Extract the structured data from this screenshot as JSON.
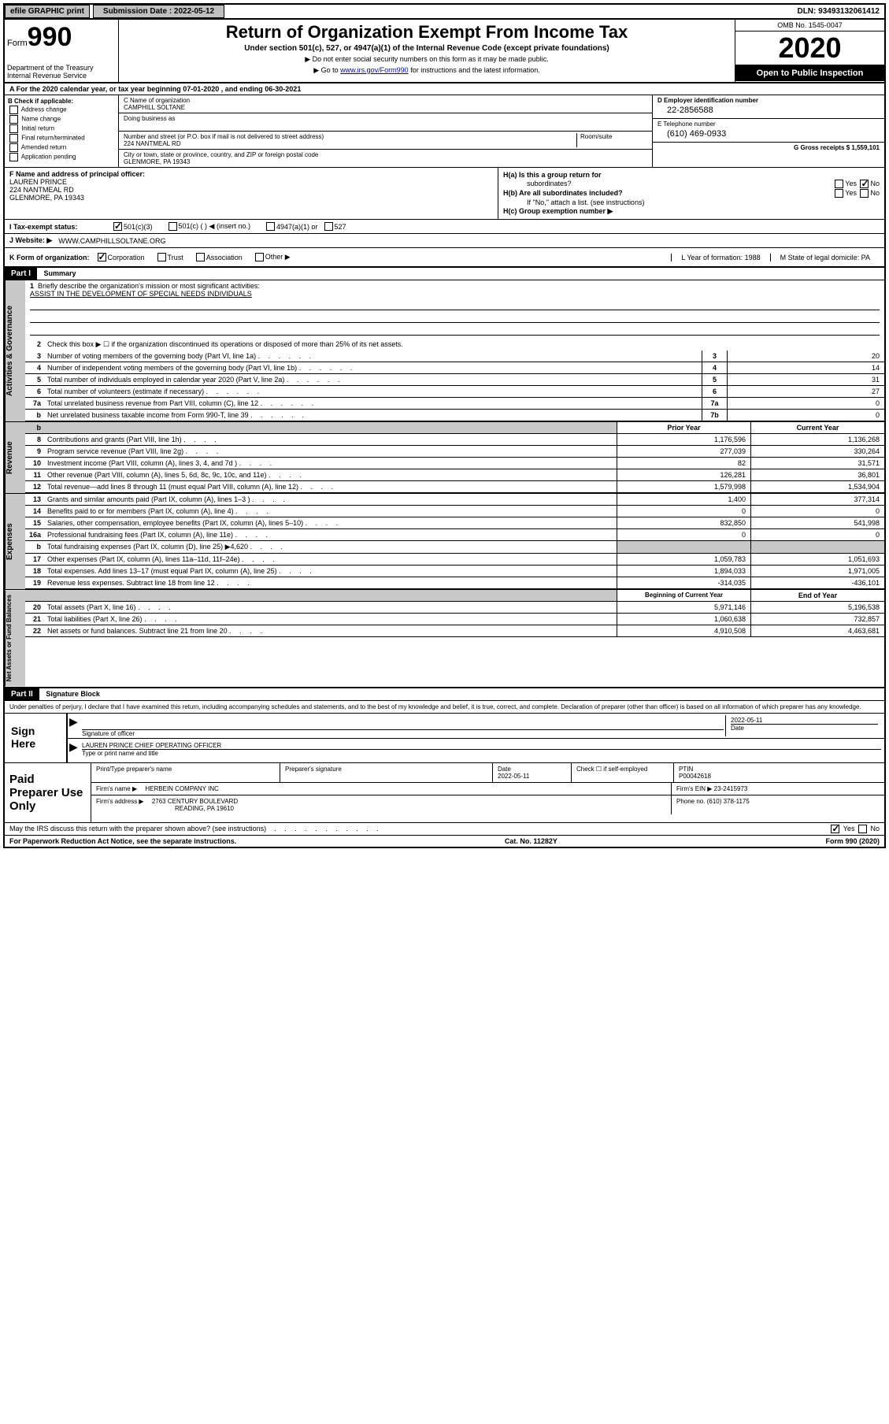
{
  "header": {
    "efile": "efile GRAPHIC print",
    "submission": "Submission Date : 2022-05-12",
    "dln": "DLN: 93493132061412"
  },
  "form": {
    "prefix": "Form",
    "number": "990",
    "dept": "Department of the Treasury Internal Revenue Service",
    "title": "Return of Organization Exempt From Income Tax",
    "subtitle": "Under section 501(c), 527, or 4947(a)(1) of the Internal Revenue Code (except private foundations)",
    "instr1": "▶ Do not enter social security numbers on this form as it may be made public.",
    "instr2_pre": "▶ Go to ",
    "instr2_link": "www.irs.gov/Form990",
    "instr2_post": " for instructions and the latest information.",
    "omb": "OMB No. 1545-0047",
    "year": "2020",
    "inspection": "Open to Public Inspection"
  },
  "rowA": "A For the 2020 calendar year, or tax year beginning 07-01-2020    , and ending 06-30-2021",
  "colB": {
    "label": "B Check if applicable:",
    "items": [
      "Address change",
      "Name change",
      "Initial return",
      "Final return/terminated",
      "Amended return",
      "Application pending"
    ]
  },
  "colC": {
    "name_label": "C Name of organization",
    "name": "CAMPHILL SOLTANE",
    "dba_label": "Doing business as",
    "addr_label": "Number and street (or P.O. box if mail is not delivered to street address)",
    "room_label": "Room/suite",
    "addr": "224 NANTMEAL RD",
    "city_label": "City or town, state or province, country, and ZIP or foreign postal code",
    "city": "GLENMORE, PA  19343"
  },
  "colD": {
    "label": "D Employer identification number",
    "val": "22-2856588"
  },
  "colE": {
    "label": "E Telephone number",
    "val": "(610) 469-0933"
  },
  "colG": {
    "label": "G Gross receipts $ 1,559,101"
  },
  "colF": {
    "label": "F Name and address of principal officer:",
    "name": "LAUREN PRINCE",
    "addr": "224 NANTMEAL RD",
    "city": "GLENMORE, PA  19343"
  },
  "colH": {
    "a": "H(a)  Is this a group return for",
    "a2": "subordinates?",
    "b": "H(b)  Are all subordinates included?",
    "note": "If \"No,\" attach a list. (see instructions)",
    "c": "H(c)  Group exemption number ▶"
  },
  "rowI": {
    "label": "I  Tax-exempt status:",
    "opts": [
      "501(c)(3)",
      "501(c) (   ) ◀ (insert no.)",
      "4947(a)(1) or",
      "527"
    ]
  },
  "rowJ": {
    "label": "J  Website: ▶",
    "val": "WWW.CAMPHILLSOLTANE.ORG"
  },
  "rowK": {
    "label": "K Form of organization:",
    "opts": [
      "Corporation",
      "Trust",
      "Association",
      "Other ▶"
    ],
    "l_label": "L Year of formation: 1988",
    "m_label": "M State of legal domicile: PA"
  },
  "part1": {
    "header": "Part I",
    "title": "Summary"
  },
  "governance": {
    "tab": "Activities & Governance",
    "line1_label": "Briefly describe the organization's mission or most significant activities:",
    "line1_val": "ASSIST IN THE DEVELOPMENT OF SPECIAL NEEDS INDIVIDUALS",
    "line2": "Check this box ▶ ☐  if the organization discontinued its operations or disposed of more than 25% of its net assets.",
    "lines": [
      {
        "n": "3",
        "label": "Number of voting members of the governing body (Part VI, line 1a)",
        "box": "3",
        "val": "20"
      },
      {
        "n": "4",
        "label": "Number of independent voting members of the governing body (Part VI, line 1b)",
        "box": "4",
        "val": "14"
      },
      {
        "n": "5",
        "label": "Total number of individuals employed in calendar year 2020 (Part V, line 2a)",
        "box": "5",
        "val": "31"
      },
      {
        "n": "6",
        "label": "Total number of volunteers (estimate if necessary)",
        "box": "6",
        "val": "27"
      },
      {
        "n": "7a",
        "label": "Total unrelated business revenue from Part VIII, column (C), line 12",
        "box": "7a",
        "val": "0"
      },
      {
        "n": "b",
        "label": "Net unrelated business taxable income from Form 990-T, line 39",
        "box": "7b",
        "val": "0"
      }
    ]
  },
  "revenue": {
    "tab": "Revenue",
    "header_prior": "Prior Year",
    "header_current": "Current Year",
    "lines": [
      {
        "n": "8",
        "label": "Contributions and grants (Part VIII, line 1h)",
        "prior": "1,176,596",
        "curr": "1,136,268"
      },
      {
        "n": "9",
        "label": "Program service revenue (Part VIII, line 2g)",
        "prior": "277,039",
        "curr": "330,264"
      },
      {
        "n": "10",
        "label": "Investment income (Part VIII, column (A), lines 3, 4, and 7d )",
        "prior": "82",
        "curr": "31,571"
      },
      {
        "n": "11",
        "label": "Other revenue (Part VIII, column (A), lines 5, 6d, 8c, 9c, 10c, and 11e)",
        "prior": "126,281",
        "curr": "36,801"
      },
      {
        "n": "12",
        "label": "Total revenue—add lines 8 through 11 (must equal Part VIII, column (A), line 12)",
        "prior": "1,579,998",
        "curr": "1,534,904"
      }
    ]
  },
  "expenses": {
    "tab": "Expenses",
    "lines": [
      {
        "n": "13",
        "label": "Grants and similar amounts paid (Part IX, column (A), lines 1–3 )",
        "prior": "1,400",
        "curr": "377,314"
      },
      {
        "n": "14",
        "label": "Benefits paid to or for members (Part IX, column (A), line 4)",
        "prior": "0",
        "curr": "0"
      },
      {
        "n": "15",
        "label": "Salaries, other compensation, employee benefits (Part IX, column (A), lines 5–10)",
        "prior": "832,850",
        "curr": "541,998"
      },
      {
        "n": "16a",
        "label": "Professional fundraising fees (Part IX, column (A), line 11e)",
        "prior": "0",
        "curr": "0"
      },
      {
        "n": "b",
        "label": "Total fundraising expenses (Part IX, column (D), line 25) ▶4,620",
        "prior": "",
        "curr": "",
        "shaded": true
      },
      {
        "n": "17",
        "label": "Other expenses (Part IX, column (A), lines 11a–11d, 11f–24e)",
        "prior": "1,059,783",
        "curr": "1,051,693"
      },
      {
        "n": "18",
        "label": "Total expenses. Add lines 13–17 (must equal Part IX, column (A), line 25)",
        "prior": "1,894,033",
        "curr": "1,971,005"
      },
      {
        "n": "19",
        "label": "Revenue less expenses. Subtract line 18 from line 12",
        "prior": "-314,035",
        "curr": "-436,101"
      }
    ]
  },
  "netassets": {
    "tab": "Net Assets or Fund Balances",
    "header_begin": "Beginning of Current Year",
    "header_end": "End of Year",
    "lines": [
      {
        "n": "20",
        "label": "Total assets (Part X, line 16)",
        "prior": "5,971,146",
        "curr": "5,196,538"
      },
      {
        "n": "21",
        "label": "Total liabilities (Part X, line 26)",
        "prior": "1,060,638",
        "curr": "732,857"
      },
      {
        "n": "22",
        "label": "Net assets or fund balances. Subtract line 21 from line 20",
        "prior": "4,910,508",
        "curr": "4,463,681"
      }
    ]
  },
  "part2": {
    "header": "Part II",
    "title": "Signature Block",
    "penalty": "Under penalties of perjury, I declare that I have examined this return, including accompanying schedules and statements, and to the best of my knowledge and belief, it is true, correct, and complete. Declaration of preparer (other than officer) is based on all information of which preparer has any knowledge."
  },
  "sign": {
    "label": "Sign Here",
    "sig_label": "Signature of officer",
    "date_label": "Date",
    "date": "2022-05-11",
    "name": "LAUREN PRINCE  CHIEF OPERATING OFFICER",
    "name_label": "Type or print name and title"
  },
  "prep": {
    "label": "Paid Preparer Use Only",
    "r1": {
      "c1_label": "Print/Type preparer's name",
      "c2_label": "Preparer's signature",
      "c3_label": "Date",
      "c3": "2022-05-11",
      "c4_label": "Check ☐ if self-employed",
      "c5_label": "PTIN",
      "c5": "P00042618"
    },
    "r2": {
      "label": "Firm's name    ▶",
      "val": "HERBEIN COMPANY INC",
      "ein_label": "Firm's EIN ▶ 23-2415973"
    },
    "r3": {
      "label": "Firm's address ▶",
      "val": "2763 CENTURY BOULEVARD",
      "phone_label": "Phone no. (610) 378-1175"
    },
    "r3b": "READING, PA  19610"
  },
  "footer": {
    "discuss": "May the IRS discuss this return with the preparer shown above? (see instructions)",
    "yes": "Yes",
    "no": "No",
    "paperwork": "For Paperwork Reduction Act Notice, see the separate instructions.",
    "cat": "Cat. No. 11282Y",
    "form": "Form 990 (2020)"
  }
}
